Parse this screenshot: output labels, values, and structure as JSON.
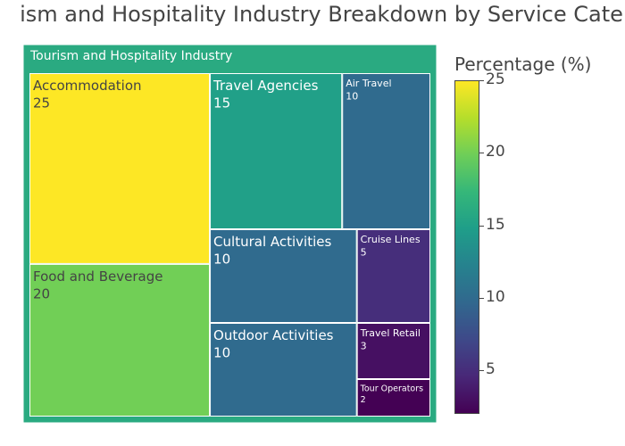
{
  "chart_data": {
    "type": "treemap",
    "title": "ism and Hospitality Industry Breakdown by Service Cate",
    "root": {
      "label": "Tourism and Hospitality Industry"
    },
    "items": [
      {
        "label": "Accommodation",
        "value": 25
      },
      {
        "label": "Food and Beverage",
        "value": 20
      },
      {
        "label": "Travel Agencies",
        "value": 15
      },
      {
        "label": "Air Travel",
        "value": 10
      },
      {
        "label": "Cultural Activities",
        "value": 10
      },
      {
        "label": "Outdoor Activities",
        "value": 10
      },
      {
        "label": "Cruise Lines",
        "value": 5
      },
      {
        "label": "Travel Retail",
        "value": 3
      },
      {
        "label": "Tour Operators",
        "value": 2
      }
    ],
    "colorbar": {
      "title": "Percentage (%)",
      "range": [
        2,
        25
      ],
      "ticks": [
        5,
        10,
        15,
        20,
        25
      ],
      "colorscale": "viridis"
    }
  }
}
